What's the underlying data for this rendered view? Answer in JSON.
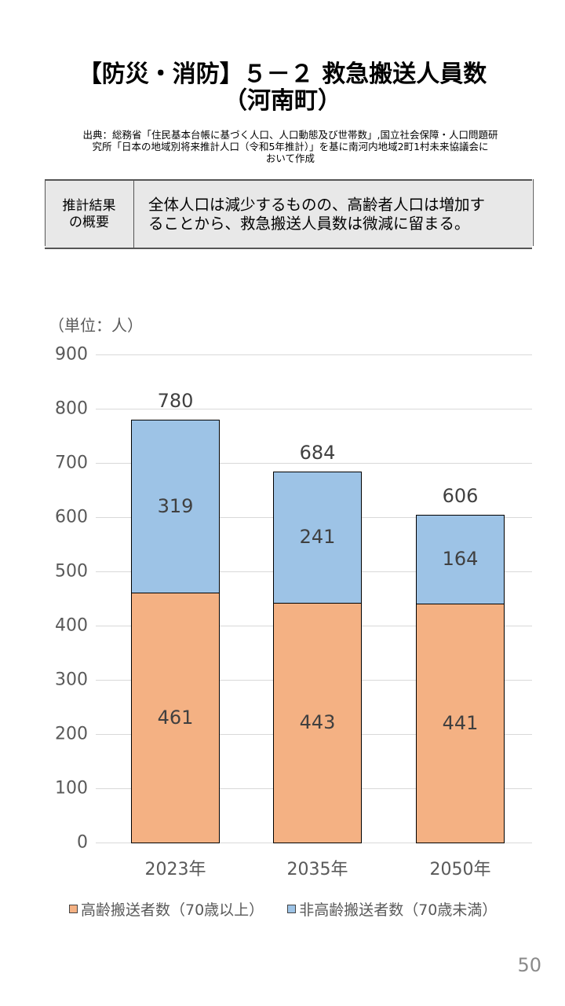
{
  "header": {
    "title_line1": "【防災・消防】５－２ 救急搬送人員数",
    "title_line2": "（河南町）",
    "source_line1": "出典：総務省「住民基本台帳に基づく人口、人口動態及び世帯数」,国立社会保障・人口問題研",
    "source_line2": "究所「日本の地域別将来推計人口（令和5年推計）」を基に南河内地域2町1村未来協議会に",
    "source_line3": "おいて作成"
  },
  "summary": {
    "label_line1": "推計結果",
    "label_line2": "の概要",
    "text_line1": "全体人口は減少するものの、高齢者人口は増加す",
    "text_line2": "ることから、救急搬送人員数は微減に留まる。"
  },
  "colors": {
    "elderly": "#f4b183",
    "non_elderly": "#9dc3e6",
    "grid": "#d9d9d9",
    "axis_text": "#595959"
  },
  "chart_data": {
    "type": "bar",
    "stacked": true,
    "title": "救急搬送人員数（河南町）",
    "unit_label": "（単位：人）",
    "xlabel": "",
    "ylabel": "人",
    "ylim": [
      0,
      900
    ],
    "yticks": [
      "0",
      "100",
      "200",
      "300",
      "400",
      "500",
      "600",
      "700",
      "800",
      "900"
    ],
    "grid": true,
    "legend_position": "bottom",
    "categories": [
      "2023年",
      "2035年",
      "2050年"
    ],
    "series": [
      {
        "name": "高齢搬送者数（70歳以上）",
        "color": "#f4b183",
        "values": [
          461,
          443,
          441
        ]
      },
      {
        "name": "非高齢搬送者数（70歳未満）",
        "color": "#9dc3e6",
        "values": [
          319,
          241,
          164
        ]
      }
    ],
    "totals": [
      780,
      684,
      606
    ],
    "labels": {
      "elderly": [
        "461",
        "443",
        "441"
      ],
      "non_elderly": [
        "319",
        "241",
        "164"
      ],
      "totals": [
        "780",
        "684",
        "606"
      ]
    }
  },
  "legend": {
    "item1": "高齢搬送者数（70歳以上）",
    "item2": "非高齢搬送者数（70歳未満）"
  },
  "footer": {
    "page_number": "50"
  }
}
